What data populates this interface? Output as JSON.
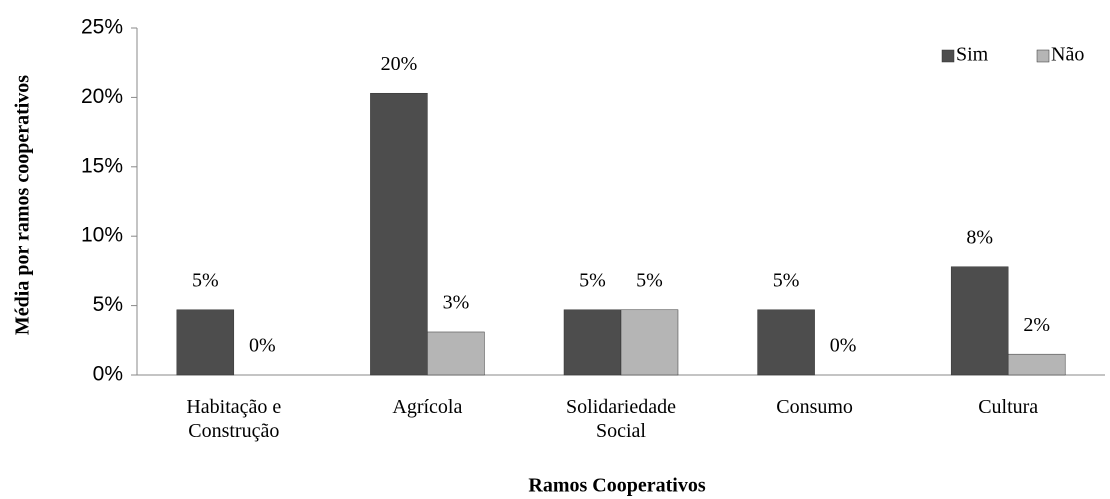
{
  "chart_data": {
    "type": "bar",
    "x_label": "Ramos Cooperativos",
    "y_label": "Média por ramos cooperativos",
    "categories": [
      "Habitação e Construção",
      "Agrícola",
      "Solidariedade Social",
      "Consumo",
      "Cultura"
    ],
    "series": [
      {
        "name": "Sim",
        "color": "#4d4d4d",
        "values": [
          4.7,
          20.3,
          4.7,
          4.7,
          7.8
        ],
        "value_labels": [
          "5%",
          "20%",
          "5%",
          "5%",
          "8%"
        ]
      },
      {
        "name": "Não",
        "color": "#b5b5b5",
        "values": [
          0,
          3.1,
          4.7,
          0,
          1.5
        ],
        "value_labels": [
          "0%",
          "3%",
          "5%",
          "0%",
          "2%"
        ]
      }
    ],
    "ylim": [
      0,
      25
    ],
    "yticks": [
      {
        "value": 0,
        "label": "0%"
      },
      {
        "value": 5,
        "label": "5%"
      },
      {
        "value": 10,
        "label": "10%"
      },
      {
        "value": 15,
        "label": "15%"
      },
      {
        "value": 20,
        "label": "20%"
      },
      {
        "value": 25,
        "label": "25%"
      }
    ],
    "legend": "top-right"
  }
}
